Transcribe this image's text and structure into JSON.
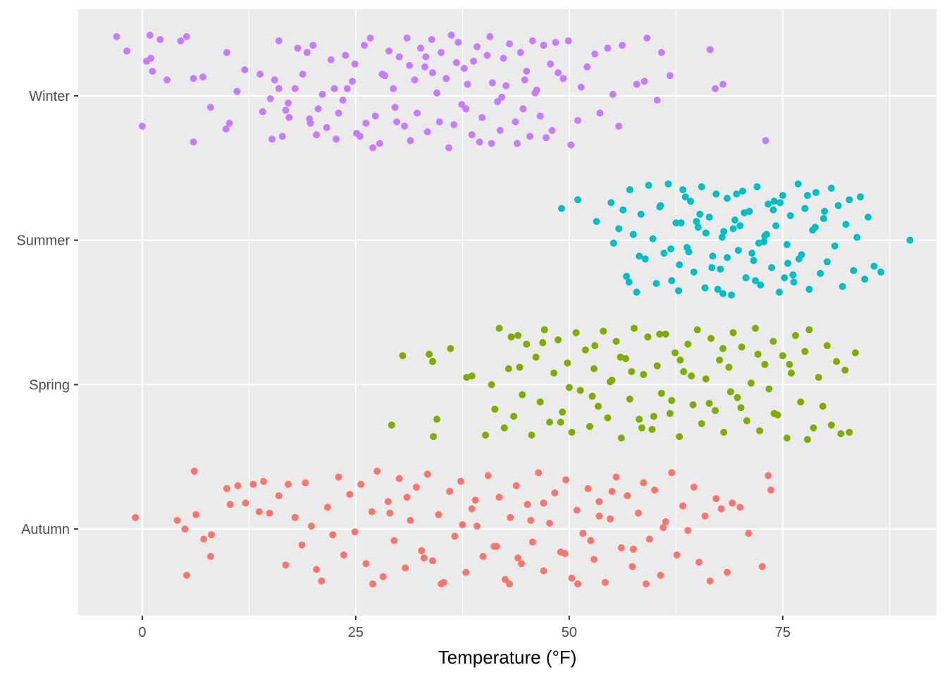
{
  "chart_data": {
    "type": "scatter",
    "title": "",
    "xlabel": "Temperature (°F)",
    "ylabel": "",
    "x_ticks": [
      0,
      25,
      50,
      75
    ],
    "xlim": [
      -7.5,
      93
    ],
    "categories": [
      "Autumn",
      "Spring",
      "Summer",
      "Winter"
    ],
    "grid": true,
    "legend": "none",
    "jitter": "vertical within each category band",
    "colors": {
      "Autumn": "#F8766D",
      "Spring": "#7CAE00",
      "Summer": "#00BFC4",
      "Winter": "#C77CFF"
    },
    "panel_background": "#EBEBEB",
    "series": [
      {
        "category": "Winter",
        "x_range_note": "points from about -3 to 73",
        "x": [
          -3.0,
          -1.8,
          0.9,
          2.1,
          4.5,
          5.2,
          0.5,
          1.2,
          2.9,
          1.0,
          6.0,
          7.1,
          9.9,
          12.0,
          11.1,
          0.0,
          6.0,
          8.0,
          9.8,
          10.2,
          13.8,
          15.5,
          16.0,
          16.8,
          17.9,
          17.1,
          16.4,
          15.2,
          14.1,
          15.0,
          17.2,
          16.0,
          18.2,
          19.3,
          20.4,
          21.1,
          19.7,
          18.8,
          20.6,
          22.1,
          23.0,
          21.6,
          20.0,
          22.7,
          24.0,
          23.5,
          24.9,
          26.0,
          25.5,
          24.6,
          26.7,
          27.3,
          28.1,
          27.8,
          26.2,
          28.9,
          29.4,
          30.1,
          29.6,
          31.0,
          30.7,
          31.9,
          32.6,
          31.4,
          33.1,
          32.2,
          33.9,
          34.5,
          33.4,
          35.0,
          34.8,
          35.6,
          36.2,
          35.9,
          36.8,
          37.4,
          37.0,
          38.1,
          38.6,
          37.7,
          39.2,
          39.8,
          40.4,
          39.5,
          41.0,
          40.7,
          41.6,
          42.3,
          41.9,
          43.0,
          42.6,
          43.7,
          44.3,
          43.9,
          45.0,
          44.6,
          45.7,
          46.2,
          45.4,
          47.0,
          46.6,
          47.8,
          48.4,
          48.0,
          49.3,
          50.2,
          51.0,
          51.4,
          52.1,
          53.0,
          53.6,
          54.5,
          55.1,
          55.8,
          56.2,
          57.9,
          58.8,
          59.1,
          60.3,
          60.8,
          61.8,
          66.5,
          67.1,
          68.0,
          73.0,
          27.0,
          29.8,
          34.0,
          36.5,
          38.8,
          42.1,
          44.8,
          47.3,
          49.9,
          33.2,
          25.1,
          28.4,
          31.3,
          37.9,
          40.9,
          46.0,
          48.7,
          22.5,
          19.6,
          23.8
        ],
        "jitter": [
          0.41,
          0.31,
          0.42,
          0.39,
          0.38,
          0.41,
          0.24,
          0.17,
          0.11,
          0.26,
          0.12,
          0.13,
          0.3,
          0.18,
          0.03,
          -0.21,
          -0.32,
          -0.08,
          -0.23,
          -0.19,
          0.15,
          0.11,
          0.05,
          -0.1,
          0.05,
          -0.05,
          -0.28,
          -0.3,
          -0.11,
          -0.02,
          -0.15,
          0.38,
          0.33,
          0.3,
          -0.27,
          0.01,
          -0.19,
          0.15,
          -0.09,
          0.25,
          -0.12,
          -0.22,
          0.35,
          -0.3,
          0.05,
          -0.03,
          0.22,
          0.35,
          -0.28,
          0.1,
          0.4,
          -0.14,
          0.15,
          -0.33,
          -0.19,
          0.31,
          0.05,
          0.27,
          -0.08,
          0.4,
          -0.21,
          0.11,
          0.33,
          -0.31,
          0.2,
          -0.12,
          0.39,
          0.02,
          -0.25,
          0.3,
          -0.18,
          0.12,
          0.42,
          -0.36,
          0.23,
          -0.06,
          0.37,
          0.08,
          -0.27,
          0.19,
          0.34,
          -0.15,
          0.28,
          -0.32,
          0.09,
          0.41,
          -0.04,
          0.26,
          -0.24,
          0.36,
          0.07,
          -0.18,
          0.3,
          -0.33,
          0.17,
          -0.09,
          0.38,
          0.04,
          -0.28,
          0.35,
          -0.14,
          0.22,
          0.37,
          -0.24,
          0.12,
          -0.34,
          -0.17,
          0.06,
          0.2,
          0.29,
          -0.12,
          0.33,
          0.01,
          -0.21,
          0.35,
          0.08,
          0.1,
          0.4,
          -0.03,
          0.3,
          0.14,
          0.32,
          0.05,
          0.08,
          -0.31,
          -0.36,
          -0.18,
          0.16,
          -0.2,
          0.24,
          -0.01,
          0.11,
          -0.29,
          0.38,
          0.27,
          -0.26,
          0.14,
          0.21,
          -0.09,
          -0.33,
          0.02,
          0.16,
          0.05,
          -0.16,
          0.28
        ]
      },
      {
        "category": "Summer",
        "x_range_note": "points from about 49 to 90",
        "x": [
          49.1,
          51.0,
          53.2,
          54.9,
          55.2,
          55.8,
          56.3,
          56.7,
          57.1,
          57.5,
          57.9,
          58.4,
          58.9,
          59.3,
          59.8,
          60.2,
          60.7,
          61.1,
          61.6,
          62.0,
          62.5,
          62.9,
          63.3,
          63.8,
          64.2,
          64.6,
          65.1,
          65.5,
          65.9,
          66.4,
          66.8,
          67.2,
          67.7,
          68.1,
          68.5,
          69.0,
          69.4,
          69.8,
          70.3,
          70.7,
          71.1,
          71.6,
          72.0,
          72.4,
          72.9,
          73.3,
          73.7,
          74.2,
          74.6,
          75.0,
          75.5,
          75.9,
          76.3,
          76.8,
          77.2,
          77.6,
          78.1,
          78.5,
          78.9,
          79.4,
          79.8,
          80.2,
          80.7,
          81.1,
          81.5,
          82.0,
          82.4,
          82.8,
          83.3,
          83.7,
          84.1,
          84.6,
          85.0,
          85.7,
          86.5,
          89.9,
          64.0,
          66.0,
          68.5,
          70.5,
          72.8,
          74.7,
          76.2,
          63.1,
          67.4,
          69.2,
          71.8,
          73.9,
          75.6,
          77.9,
          61.9,
          65.3,
          68.0,
          70.0,
          72.2,
          74.0,
          76.9,
          78.8,
          60.6,
          62.8,
          64.9,
          66.7,
          69.6,
          71.4,
          73.1,
          75.2,
          79.9,
          58.2,
          57.0,
          63.6,
          67.9
        ],
        "jitter": [
          0.22,
          0.28,
          0.13,
          0.26,
          -0.02,
          0.08,
          0.21,
          -0.25,
          0.35,
          0.04,
          -0.36,
          0.18,
          -0.13,
          0.38,
          0.01,
          -0.3,
          0.24,
          -0.09,
          0.39,
          -0.28,
          0.12,
          -0.17,
          0.35,
          -0.05,
          0.27,
          -0.22,
          0.09,
          0.37,
          -0.33,
          0.16,
          -0.11,
          0.32,
          -0.2,
          0.06,
          0.29,
          -0.38,
          0.14,
          -0.07,
          0.34,
          -0.26,
          0.2,
          -0.14,
          0.37,
          -0.31,
          0.03,
          0.25,
          -0.19,
          0.1,
          -0.36,
          0.31,
          -0.03,
          0.17,
          -0.29,
          0.39,
          -0.1,
          0.22,
          -0.34,
          0.07,
          0.33,
          -0.23,
          0.15,
          -0.15,
          0.36,
          -0.04,
          0.24,
          -0.32,
          0.11,
          0.28,
          -0.21,
          0.02,
          0.3,
          -0.27,
          0.16,
          -0.18,
          -0.22,
          0.0,
          -0.08,
          0.05,
          -0.12,
          0.19,
          -0.01,
          0.26,
          -0.24,
          0.12,
          -0.34,
          0.08,
          -0.28,
          0.21,
          -0.16,
          0.31,
          -0.06,
          0.18,
          -0.37,
          0.1,
          -0.02,
          0.27,
          -0.13,
          0.09,
          0.23,
          -0.35,
          0.13,
          -0.19,
          0.32,
          -0.09,
          0.04,
          -0.26,
          0.2,
          -0.11,
          -0.29,
          0.3,
          0.02
        ]
      },
      {
        "category": "Spring",
        "x_range_note": "points from about 29 to 84",
        "x": [
          29.2,
          30.5,
          33.6,
          34.0,
          34.1,
          36.1,
          38.0,
          38.6,
          40.2,
          40.9,
          41.3,
          41.8,
          42.4,
          42.9,
          43.5,
          44.0,
          44.5,
          45.0,
          45.6,
          46.1,
          46.6,
          47.1,
          47.7,
          48.2,
          48.7,
          49.2,
          49.8,
          50.3,
          50.8,
          51.3,
          51.9,
          52.4,
          52.9,
          53.4,
          54.0,
          54.5,
          55.0,
          55.5,
          56.1,
          56.6,
          57.1,
          57.6,
          58.2,
          58.7,
          59.2,
          59.7,
          60.3,
          60.8,
          61.3,
          61.8,
          62.4,
          62.9,
          63.4,
          63.9,
          64.5,
          65.0,
          65.5,
          66.0,
          66.6,
          67.1,
          67.6,
          68.1,
          68.7,
          69.2,
          69.7,
          70.2,
          70.8,
          71.3,
          71.8,
          72.3,
          72.9,
          73.4,
          73.9,
          74.4,
          75.0,
          75.5,
          76.0,
          76.5,
          77.1,
          77.6,
          78.1,
          78.6,
          79.2,
          79.7,
          80.2,
          80.7,
          81.3,
          81.8,
          82.3,
          82.8,
          83.5,
          34.5,
          44.2,
          50.0,
          56.0,
          62.0,
          68.0,
          74.0,
          46.9,
          52.7,
          58.5,
          64.3,
          70.1,
          75.8,
          43.2,
          49.0,
          54.8,
          60.6,
          66.4,
          72.1,
          77.9,
          57.3,
          63.0,
          68.9,
          53.0,
          59.9
        ],
        "jitter": [
          -0.28,
          0.2,
          0.21,
          0.16,
          -0.36,
          0.25,
          0.05,
          0.06,
          -0.35,
          0.0,
          -0.17,
          0.39,
          -0.3,
          0.11,
          -0.22,
          0.34,
          -0.07,
          0.28,
          -0.35,
          0.19,
          -0.12,
          0.38,
          -0.26,
          0.08,
          0.31,
          -0.19,
          0.15,
          -0.33,
          0.36,
          -0.04,
          0.24,
          -0.29,
          0.11,
          -0.15,
          0.37,
          -0.23,
          0.03,
          0.3,
          -0.37,
          0.18,
          -0.1,
          0.39,
          -0.24,
          0.07,
          0.33,
          -0.31,
          0.13,
          -0.06,
          0.35,
          -0.2,
          0.22,
          -0.36,
          0.09,
          0.28,
          -0.14,
          0.38,
          -0.27,
          0.04,
          0.32,
          -0.18,
          0.17,
          -0.33,
          0.12,
          0.36,
          -0.09,
          0.26,
          -0.25,
          0.01,
          0.39,
          -0.32,
          0.14,
          -0.03,
          0.3,
          -0.21,
          0.2,
          -0.37,
          0.08,
          0.34,
          -0.12,
          0.23,
          0.38,
          -0.3,
          0.05,
          -0.15,
          0.27,
          -0.28,
          0.16,
          -0.34,
          0.1,
          -0.33,
          0.22,
          -0.24,
          0.12,
          -0.02,
          0.19,
          -0.11,
          0.25,
          -0.2,
          0.29,
          -0.08,
          -0.3,
          0.06,
          -0.16,
          0.14,
          0.33,
          -0.26,
          0.02,
          0.35,
          -0.13,
          0.21,
          -0.38,
          0.09,
          0.17,
          -0.05,
          0.27,
          -0.22,
          0.04
        ]
      },
      {
        "category": "Autumn",
        "x_range_note": "points from about -1 to 74",
        "x": [
          -0.8,
          4.1,
          5.0,
          5.2,
          6.1,
          6.3,
          7.2,
          8.0,
          8.1,
          9.9,
          10.3,
          11.2,
          12.1,
          13.0,
          13.7,
          14.2,
          14.9,
          16.0,
          16.8,
          17.1,
          17.9,
          18.7,
          19.1,
          19.8,
          20.4,
          21.0,
          21.7,
          22.3,
          23.0,
          23.6,
          24.3,
          24.9,
          25.6,
          26.2,
          26.9,
          27.5,
          28.2,
          28.8,
          29.5,
          30.1,
          30.8,
          31.4,
          32.1,
          32.7,
          33.4,
          34.0,
          34.7,
          35.3,
          36.0,
          36.6,
          37.3,
          37.9,
          38.6,
          39.2,
          39.9,
          40.5,
          41.2,
          41.8,
          42.5,
          43.1,
          43.8,
          44.4,
          45.1,
          45.7,
          46.4,
          47.0,
          47.7,
          48.3,
          49.0,
          49.6,
          50.3,
          50.9,
          51.6,
          52.2,
          52.9,
          53.5,
          54.2,
          54.8,
          55.5,
          56.1,
          56.8,
          57.4,
          58.1,
          58.7,
          59.4,
          60.0,
          60.7,
          61.3,
          62.0,
          62.6,
          63.3,
          63.9,
          64.6,
          65.2,
          65.9,
          66.5,
          67.2,
          67.8,
          68.5,
          69.1,
          70.0,
          71.0,
          72.6,
          73.3,
          73.6,
          27.0,
          31.0,
          35.0,
          39.0,
          43.0,
          47.0,
          51.0,
          55.0,
          59.0,
          33.0,
          37.5,
          41.5,
          45.5,
          49.5,
          53.5,
          57.5,
          29.0,
          44.0,
          52.5,
          61.0
        ],
        "jitter": [
          0.08,
          0.06,
          0.0,
          -0.32,
          0.4,
          0.1,
          -0.07,
          -0.19,
          -0.04,
          0.28,
          0.17,
          0.3,
          0.18,
          0.31,
          0.12,
          0.33,
          0.11,
          0.23,
          -0.25,
          0.31,
          0.08,
          -0.11,
          0.32,
          0.02,
          -0.28,
          -0.36,
          0.15,
          -0.04,
          0.36,
          -0.18,
          0.24,
          -0.02,
          0.31,
          -0.24,
          0.12,
          0.4,
          -0.33,
          0.19,
          -0.08,
          0.35,
          -0.27,
          0.06,
          0.29,
          -0.15,
          0.38,
          -0.22,
          0.1,
          -0.37,
          0.26,
          -0.05,
          0.33,
          -0.3,
          0.14,
          0.02,
          -0.19,
          0.37,
          -0.12,
          0.22,
          -0.35,
          0.08,
          0.3,
          -0.24,
          0.17,
          -0.09,
          0.39,
          -0.29,
          0.04,
          0.25,
          -0.16,
          0.34,
          -0.34,
          0.13,
          -0.03,
          0.28,
          -0.21,
          0.19,
          -0.37,
          0.07,
          0.36,
          -0.13,
          0.23,
          -0.26,
          0.11,
          0.32,
          -0.07,
          0.27,
          -0.32,
          0.05,
          0.39,
          -0.18,
          0.16,
          -0.01,
          0.29,
          -0.23,
          0.09,
          -0.36,
          0.21,
          0.14,
          -0.3,
          0.18,
          0.15,
          -0.03,
          -0.26,
          0.37,
          0.27,
          -0.38,
          0.22,
          -0.38,
          0.2,
          -0.38,
          0.18,
          -0.38,
          0.26,
          -0.38,
          -0.2,
          0.03,
          -0.12,
          0.06,
          -0.17,
          0.09,
          -0.14,
          0.11,
          -0.2,
          -0.08,
          0.01
        ]
      }
    ]
  }
}
